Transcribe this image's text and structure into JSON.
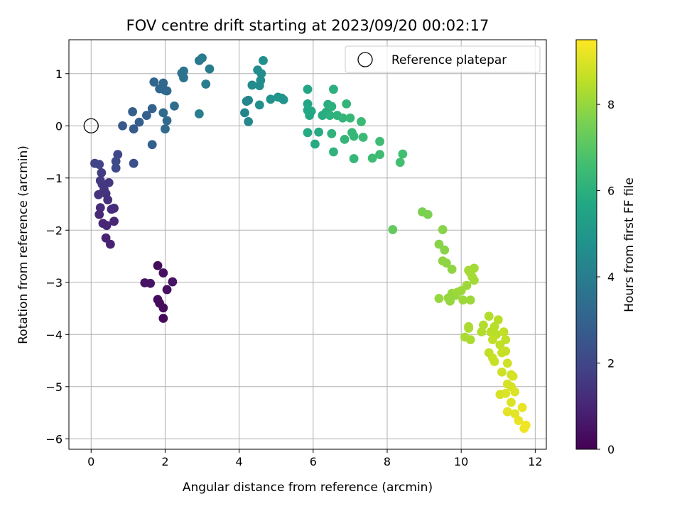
{
  "chart_data": {
    "type": "scatter",
    "title": "FOV centre drift starting at 2023/09/20 00:02:17",
    "xlabel": "Angular distance from reference (arcmin)",
    "ylabel": "Rotation from reference (arcmin)",
    "xlim": [
      -0.6,
      12.3
    ],
    "ylim": [
      -6.2,
      1.65
    ],
    "xticks": [
      0,
      2,
      4,
      6,
      8,
      10,
      12
    ],
    "yticks": [
      -6,
      -5,
      -4,
      -3,
      -2,
      -1,
      0,
      1
    ],
    "grid": true,
    "colormap": "viridis",
    "colorbar": {
      "label": "Hours from first FF file",
      "range": [
        0,
        9.5
      ],
      "ticks": [
        0,
        2,
        4,
        6,
        8
      ]
    },
    "legend": {
      "position": "top-right",
      "entries": [
        "Reference platepar"
      ]
    },
    "reference_point": {
      "x": 0,
      "y": 0
    },
    "points": [
      {
        "x": 1.8,
        "y": -2.68,
        "c": 0.3
      },
      {
        "x": 1.95,
        "y": -2.82,
        "c": 0.4
      },
      {
        "x": 2.2,
        "y": -2.99,
        "c": 0.5
      },
      {
        "x": 1.45,
        "y": -3.01,
        "c": 0.5
      },
      {
        "x": 1.6,
        "y": -3.02,
        "c": 0.5
      },
      {
        "x": 2.05,
        "y": -3.14,
        "c": 0.4
      },
      {
        "x": 1.8,
        "y": -3.33,
        "c": 0.3
      },
      {
        "x": 1.85,
        "y": -3.4,
        "c": 0.3
      },
      {
        "x": 1.95,
        "y": -3.49,
        "c": 0.3
      },
      {
        "x": 1.95,
        "y": -3.69,
        "c": 0.2
      },
      {
        "x": 0.1,
        "y": -0.72,
        "c": 1.9
      },
      {
        "x": 0.22,
        "y": -0.74,
        "c": 1.9
      },
      {
        "x": 0.28,
        "y": -0.9,
        "c": 1.7
      },
      {
        "x": 0.25,
        "y": -1.05,
        "c": 1.6
      },
      {
        "x": 0.3,
        "y": -1.12,
        "c": 1.6
      },
      {
        "x": 0.48,
        "y": -1.09,
        "c": 1.5
      },
      {
        "x": 0.35,
        "y": -1.22,
        "c": 1.5
      },
      {
        "x": 0.2,
        "y": -1.32,
        "c": 1.4
      },
      {
        "x": 0.4,
        "y": -1.3,
        "c": 1.4
      },
      {
        "x": 0.45,
        "y": -1.42,
        "c": 1.3
      },
      {
        "x": 0.25,
        "y": -1.57,
        "c": 1.2
      },
      {
        "x": 0.55,
        "y": -1.6,
        "c": 1.2
      },
      {
        "x": 0.62,
        "y": -1.58,
        "c": 1.2
      },
      {
        "x": 0.22,
        "y": -1.7,
        "c": 1.1
      },
      {
        "x": 0.62,
        "y": -1.83,
        "c": 1.0
      },
      {
        "x": 0.32,
        "y": -1.87,
        "c": 1.0
      },
      {
        "x": 0.42,
        "y": -1.91,
        "c": 1.0
      },
      {
        "x": 0.4,
        "y": -2.15,
        "c": 0.9
      },
      {
        "x": 0.52,
        "y": -2.27,
        "c": 0.9
      },
      {
        "x": 0.72,
        "y": -0.55,
        "c": 2.0
      },
      {
        "x": 0.67,
        "y": -0.68,
        "c": 2.1
      },
      {
        "x": 0.67,
        "y": -0.81,
        "c": 2.1
      },
      {
        "x": 1.15,
        "y": -0.72,
        "c": 2.3
      },
      {
        "x": 0.85,
        "y": 0.0,
        "c": 2.6
      },
      {
        "x": 1.15,
        "y": -0.06,
        "c": 2.7
      },
      {
        "x": 1.3,
        "y": 0.07,
        "c": 2.8
      },
      {
        "x": 1.12,
        "y": 0.27,
        "c": 2.8
      },
      {
        "x": 1.5,
        "y": 0.2,
        "c": 2.9
      },
      {
        "x": 1.65,
        "y": 0.33,
        "c": 3.0
      },
      {
        "x": 1.65,
        "y": -0.36,
        "c": 2.9
      },
      {
        "x": 1.7,
        "y": 0.84,
        "c": 3.1
      },
      {
        "x": 1.85,
        "y": 0.71,
        "c": 3.1
      },
      {
        "x": 1.95,
        "y": 0.82,
        "c": 3.2
      },
      {
        "x": 2.0,
        "y": 0.68,
        "c": 3.2
      },
      {
        "x": 2.05,
        "y": 0.67,
        "c": 3.2
      },
      {
        "x": 1.95,
        "y": 0.25,
        "c": 3.3
      },
      {
        "x": 2.05,
        "y": 0.1,
        "c": 3.3
      },
      {
        "x": 2.0,
        "y": -0.06,
        "c": 3.3
      },
      {
        "x": 2.25,
        "y": 0.38,
        "c": 3.4
      },
      {
        "x": 2.5,
        "y": 1.05,
        "c": 3.6
      },
      {
        "x": 2.45,
        "y": 1.01,
        "c": 3.6
      },
      {
        "x": 2.5,
        "y": 0.92,
        "c": 3.6
      },
      {
        "x": 2.92,
        "y": 1.25,
        "c": 3.8
      },
      {
        "x": 3.0,
        "y": 1.3,
        "c": 3.9
      },
      {
        "x": 3.2,
        "y": 1.09,
        "c": 3.9
      },
      {
        "x": 3.1,
        "y": 0.8,
        "c": 4.0
      },
      {
        "x": 2.92,
        "y": 0.23,
        "c": 4.0
      },
      {
        "x": 4.15,
        "y": 0.25,
        "c": 4.3
      },
      {
        "x": 4.2,
        "y": 0.47,
        "c": 4.3
      },
      {
        "x": 4.25,
        "y": 0.49,
        "c": 4.3
      },
      {
        "x": 4.25,
        "y": 0.08,
        "c": 4.4
      },
      {
        "x": 4.35,
        "y": 0.78,
        "c": 4.5
      },
      {
        "x": 4.5,
        "y": 1.07,
        "c": 4.6
      },
      {
        "x": 4.6,
        "y": 1.0,
        "c": 4.6
      },
      {
        "x": 4.58,
        "y": 0.87,
        "c": 4.6
      },
      {
        "x": 4.55,
        "y": 0.77,
        "c": 4.6
      },
      {
        "x": 4.65,
        "y": 1.25,
        "c": 4.7
      },
      {
        "x": 4.55,
        "y": 0.4,
        "c": 4.7
      },
      {
        "x": 4.85,
        "y": 0.51,
        "c": 4.8
      },
      {
        "x": 5.05,
        "y": 0.55,
        "c": 4.9
      },
      {
        "x": 5.15,
        "y": 0.53,
        "c": 4.9
      },
      {
        "x": 5.2,
        "y": 0.5,
        "c": 4.9
      },
      {
        "x": 5.85,
        "y": 0.7,
        "c": 5.6
      },
      {
        "x": 5.85,
        "y": 0.42,
        "c": 5.6
      },
      {
        "x": 5.85,
        "y": 0.3,
        "c": 5.7
      },
      {
        "x": 5.95,
        "y": 0.28,
        "c": 5.7
      },
      {
        "x": 5.9,
        "y": 0.2,
        "c": 5.7
      },
      {
        "x": 5.85,
        "y": -0.13,
        "c": 5.8
      },
      {
        "x": 6.05,
        "y": -0.35,
        "c": 5.8
      },
      {
        "x": 6.15,
        "y": -0.12,
        "c": 5.8
      },
      {
        "x": 6.25,
        "y": 0.2,
        "c": 5.9
      },
      {
        "x": 6.35,
        "y": 0.26,
        "c": 5.9
      },
      {
        "x": 6.4,
        "y": 0.41,
        "c": 5.9
      },
      {
        "x": 6.5,
        "y": 0.37,
        "c": 6.0
      },
      {
        "x": 6.45,
        "y": 0.2,
        "c": 6.0
      },
      {
        "x": 6.55,
        "y": 0.7,
        "c": 6.0
      },
      {
        "x": 6.65,
        "y": 0.2,
        "c": 6.1
      },
      {
        "x": 6.5,
        "y": -0.15,
        "c": 6.1
      },
      {
        "x": 6.55,
        "y": -0.5,
        "c": 6.1
      },
      {
        "x": 6.8,
        "y": 0.15,
        "c": 6.2
      },
      {
        "x": 6.9,
        "y": 0.42,
        "c": 6.2
      },
      {
        "x": 6.85,
        "y": -0.26,
        "c": 6.2
      },
      {
        "x": 7.0,
        "y": 0.15,
        "c": 6.3
      },
      {
        "x": 7.05,
        "y": -0.13,
        "c": 6.3
      },
      {
        "x": 7.1,
        "y": -0.2,
        "c": 6.3
      },
      {
        "x": 7.1,
        "y": -0.63,
        "c": 6.3
      },
      {
        "x": 7.3,
        "y": 0.08,
        "c": 6.4
      },
      {
        "x": 7.35,
        "y": -0.22,
        "c": 6.4
      },
      {
        "x": 7.6,
        "y": -0.62,
        "c": 6.5
      },
      {
        "x": 7.8,
        "y": -0.3,
        "c": 6.5
      },
      {
        "x": 7.8,
        "y": -0.55,
        "c": 6.5
      },
      {
        "x": 8.35,
        "y": -0.7,
        "c": 6.6
      },
      {
        "x": 8.42,
        "y": -0.54,
        "c": 6.6
      },
      {
        "x": 8.15,
        "y": -1.99,
        "c": 7.2
      },
      {
        "x": 8.95,
        "y": -1.65,
        "c": 7.6
      },
      {
        "x": 9.1,
        "y": -1.7,
        "c": 7.6
      },
      {
        "x": 9.5,
        "y": -1.99,
        "c": 7.8
      },
      {
        "x": 9.4,
        "y": -2.27,
        "c": 7.8
      },
      {
        "x": 9.55,
        "y": -2.38,
        "c": 7.8
      },
      {
        "x": 9.5,
        "y": -2.59,
        "c": 7.9
      },
      {
        "x": 9.6,
        "y": -2.63,
        "c": 7.9
      },
      {
        "x": 9.75,
        "y": -2.75,
        "c": 7.9
      },
      {
        "x": 9.4,
        "y": -3.31,
        "c": 8.0
      },
      {
        "x": 9.65,
        "y": -3.3,
        "c": 8.0
      },
      {
        "x": 9.7,
        "y": -3.36,
        "c": 8.0
      },
      {
        "x": 9.75,
        "y": -3.21,
        "c": 8.0
      },
      {
        "x": 9.85,
        "y": -3.25,
        "c": 8.0
      },
      {
        "x": 9.9,
        "y": -3.19,
        "c": 8.1
      },
      {
        "x": 10.0,
        "y": -3.16,
        "c": 8.1
      },
      {
        "x": 10.05,
        "y": -3.34,
        "c": 8.1
      },
      {
        "x": 10.15,
        "y": -3.06,
        "c": 8.1
      },
      {
        "x": 10.25,
        "y": -3.34,
        "c": 8.1
      },
      {
        "x": 10.2,
        "y": -2.77,
        "c": 8.2
      },
      {
        "x": 10.25,
        "y": -2.82,
        "c": 8.2
      },
      {
        "x": 10.35,
        "y": -2.73,
        "c": 8.2
      },
      {
        "x": 10.3,
        "y": -2.9,
        "c": 8.2
      },
      {
        "x": 10.35,
        "y": -2.96,
        "c": 8.2
      },
      {
        "x": 10.2,
        "y": -3.85,
        "c": 8.3
      },
      {
        "x": 10.2,
        "y": -3.88,
        "c": 8.3
      },
      {
        "x": 10.1,
        "y": -4.05,
        "c": 8.3
      },
      {
        "x": 10.25,
        "y": -4.1,
        "c": 8.3
      },
      {
        "x": 10.55,
        "y": -3.95,
        "c": 8.4
      },
      {
        "x": 10.6,
        "y": -3.82,
        "c": 8.4
      },
      {
        "x": 10.75,
        "y": -3.65,
        "c": 8.4
      },
      {
        "x": 10.8,
        "y": -3.95,
        "c": 8.5
      },
      {
        "x": 10.9,
        "y": -3.85,
        "c": 8.5
      },
      {
        "x": 10.95,
        "y": -4.0,
        "c": 8.5
      },
      {
        "x": 11.0,
        "y": -3.72,
        "c": 8.5
      },
      {
        "x": 11.05,
        "y": -4.2,
        "c": 8.6
      },
      {
        "x": 10.85,
        "y": -4.1,
        "c": 8.6
      },
      {
        "x": 11.15,
        "y": -3.95,
        "c": 8.6
      },
      {
        "x": 11.2,
        "y": -4.1,
        "c": 8.6
      },
      {
        "x": 10.75,
        "y": -4.35,
        "c": 8.6
      },
      {
        "x": 10.85,
        "y": -4.45,
        "c": 8.7
      },
      {
        "x": 10.9,
        "y": -4.52,
        "c": 8.7
      },
      {
        "x": 11.1,
        "y": -4.35,
        "c": 8.7
      },
      {
        "x": 11.2,
        "y": -4.32,
        "c": 8.7
      },
      {
        "x": 11.25,
        "y": -4.55,
        "c": 8.8
      },
      {
        "x": 11.1,
        "y": -4.72,
        "c": 8.8
      },
      {
        "x": 11.35,
        "y": -4.77,
        "c": 8.8
      },
      {
        "x": 11.4,
        "y": -4.8,
        "c": 8.9
      },
      {
        "x": 11.25,
        "y": -4.95,
        "c": 8.9
      },
      {
        "x": 11.35,
        "y": -5.0,
        "c": 8.9
      },
      {
        "x": 11.05,
        "y": -5.15,
        "c": 8.9
      },
      {
        "x": 11.2,
        "y": -5.13,
        "c": 9.0
      },
      {
        "x": 11.45,
        "y": -5.1,
        "c": 9.0
      },
      {
        "x": 11.35,
        "y": -5.3,
        "c": 9.0
      },
      {
        "x": 11.25,
        "y": -5.48,
        "c": 9.1
      },
      {
        "x": 11.45,
        "y": -5.52,
        "c": 9.1
      },
      {
        "x": 11.55,
        "y": -5.65,
        "c": 9.2
      },
      {
        "x": 11.65,
        "y": -5.4,
        "c": 9.2
      },
      {
        "x": 11.7,
        "y": -5.8,
        "c": 9.3
      },
      {
        "x": 11.75,
        "y": -5.74,
        "c": 9.3
      }
    ]
  }
}
